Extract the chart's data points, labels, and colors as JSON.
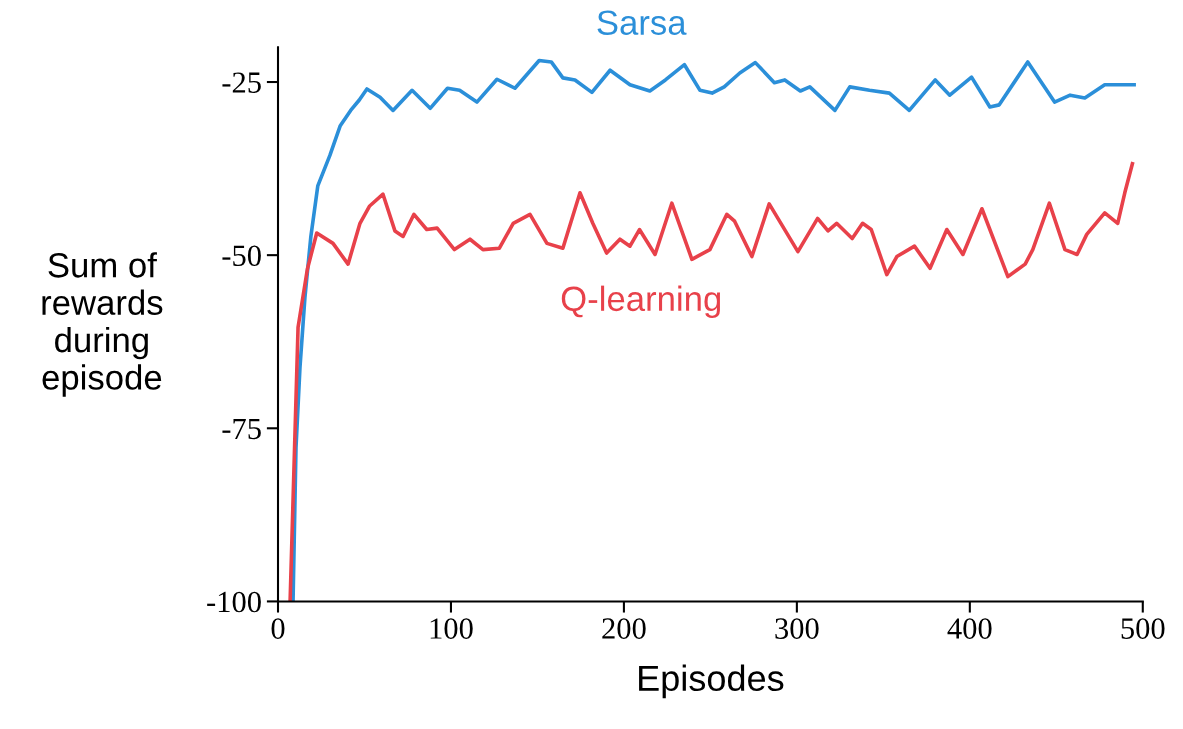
{
  "chart_data": {
    "type": "line",
    "xlabel": "Episodes",
    "ylabel": "Sum of\nrewards\nduring\nepisode",
    "xlim": [
      0,
      500
    ],
    "ylim": [
      -100,
      -20
    ],
    "xticks": [
      0,
      100,
      200,
      300,
      400,
      500
    ],
    "yticks": [
      -100,
      -75,
      -50,
      -25
    ],
    "grid": false,
    "legend": false,
    "marker": "none",
    "line_style": "solid",
    "series": [
      {
        "name": "Sarsa",
        "color": "#2b8fd9",
        "x": [
          8.7,
          10.4,
          12.7,
          15.6,
          19,
          23,
          30,
          36,
          42,
          47,
          51.4,
          59,
          66.5,
          77.5,
          88,
          98,
          105,
          115,
          126.6,
          137,
          151,
          158,
          164.7,
          171.7,
          181.5,
          192,
          203.5,
          215,
          224,
          235,
          244,
          251,
          258,
          267,
          276,
          287,
          293,
          302,
          307.5,
          322,
          330.6,
          342,
          353.5,
          365,
          380,
          388.4,
          401,
          411.6,
          417,
          433.5,
          449,
          458,
          466.5,
          478,
          495
        ],
        "values": [
          -100,
          -77.8,
          -66.2,
          -56.0,
          -47.3,
          -40,
          -35.6,
          -31.3,
          -29.1,
          -27.6,
          -26.0,
          -27.2,
          -29.1,
          -26.2,
          -28.8,
          -25.9,
          -26.2,
          -27.9,
          -24.6,
          -25.9,
          -21.9,
          -22.1,
          -24.4,
          -24.7,
          -26.5,
          -23.3,
          -25.4,
          -26.3,
          -24.7,
          -22.5,
          -26.2,
          -26.6,
          -25.7,
          -23.7,
          -22.2,
          -25.1,
          -24.7,
          -26.3,
          -25.7,
          -29.1,
          -25.7,
          -26.2,
          -26.6,
          -29.1,
          -24.7,
          -26.9,
          -24.3,
          -28.6,
          -28.3,
          -22.1,
          -27.9,
          -26.9,
          -27.3,
          -25.4,
          -25.4
        ]
      },
      {
        "name": "Q-learning",
        "color": "#e8414a",
        "x": [
          7,
          11.6,
          17,
          22.4,
          31.8,
          40.5,
          47.4,
          53,
          60.7,
          67.6,
          72.3,
          78.6,
          86,
          92,
          102,
          111,
          118.5,
          128,
          136,
          145.7,
          155.5,
          164.7,
          174.6,
          182,
          190,
          197.7,
          203.5,
          209,
          218,
          227.7,
          239.3,
          249.7,
          259.5,
          264,
          274,
          284,
          300.6,
          312,
          318,
          323,
          332,
          338,
          343,
          352,
          357.8,
          368,
          377,
          386.7,
          396,
          407,
          422,
          432,
          436.4,
          446,
          455,
          462,
          467.6,
          478,
          485.5,
          489.6,
          494
        ],
        "values": [
          -100,
          -60.4,
          -52,
          -46.8,
          -48.3,
          -51.3,
          -45.4,
          -42.9,
          -41.2,
          -46.5,
          -47.3,
          -44.1,
          -46.3,
          -46.1,
          -49.2,
          -47.7,
          -49.2,
          -49,
          -45.4,
          -44.1,
          -48.3,
          -49,
          -41,
          -45.4,
          -49.7,
          -47.7,
          -48.7,
          -46.3,
          -49.9,
          -42.5,
          -50.6,
          -49.2,
          -44.1,
          -45.1,
          -50.2,
          -42.6,
          -49.5,
          -44.7,
          -46.5,
          -45.4,
          -47.6,
          -45.4,
          -46.3,
          -52.8,
          -50.2,
          -48.7,
          -51.9,
          -46.3,
          -49.9,
          -43.3,
          -53.1,
          -51.3,
          -49.2,
          -42.5,
          -49.2,
          -49.9,
          -47,
          -43.9,
          -45.4,
          -41,
          -36.8
        ]
      }
    ]
  }
}
